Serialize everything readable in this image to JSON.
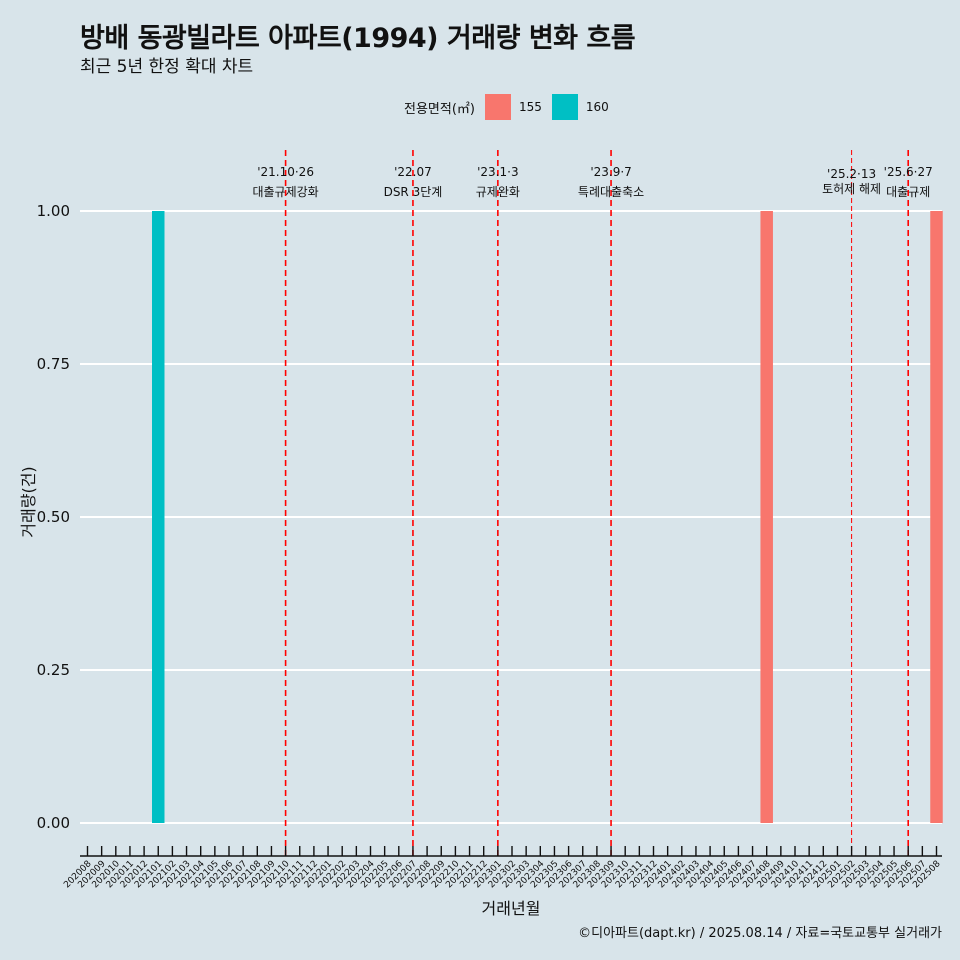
{
  "title": "방배 동광빌라트 아파트(1994) 거래량 변화 흐름",
  "subtitle": "최근 5년 한정 확대 차트",
  "caption": "©디아파트(dapt.kr) / 2025.08.14 / 자료=국토교통부 실거래가",
  "colors": {
    "background": "#d8e4ea",
    "s155": "#f8766d",
    "s160": "#00bfc4",
    "event_line": "#ff0000"
  },
  "chart_data": {
    "type": "bar",
    "title": "방배 동광빌라트 아파트(1994) 거래량 변화 흐름",
    "subtitle": "최근 5년 한정 확대 차트",
    "xlabel": "거래년월",
    "ylabel": "거래량(건)",
    "ylim": [
      0,
      1
    ],
    "yticks": [
      "0.00",
      "0.25",
      "0.50",
      "0.75",
      "1.00"
    ],
    "legend_title": "전용면적(㎡)",
    "legend_position": "top",
    "grid": true,
    "categories": [
      "202008",
      "202009",
      "202010",
      "202011",
      "202012",
      "202101",
      "202102",
      "202103",
      "202104",
      "202105",
      "202106",
      "202107",
      "202108",
      "202109",
      "202110",
      "202111",
      "202112",
      "202201",
      "202202",
      "202203",
      "202204",
      "202205",
      "202206",
      "202207",
      "202208",
      "202209",
      "202210",
      "202211",
      "202212",
      "202301",
      "202302",
      "202303",
      "202304",
      "202305",
      "202306",
      "202307",
      "202308",
      "202309",
      "202310",
      "202311",
      "202312",
      "202401",
      "202402",
      "202403",
      "202404",
      "202405",
      "202406",
      "202407",
      "202408",
      "202409",
      "202410",
      "202411",
      "202412",
      "202501",
      "202502",
      "202503",
      "202504",
      "202505",
      "202506",
      "202507",
      "202508"
    ],
    "series": [
      {
        "name": "155",
        "color": "#f8766d",
        "points": [
          {
            "x": "202408",
            "y": 1
          },
          {
            "x": "202508",
            "y": 1
          }
        ]
      },
      {
        "name": "160",
        "color": "#00bfc4",
        "points": [
          {
            "x": "202101",
            "y": 1
          }
        ]
      }
    ],
    "events": [
      {
        "x": "202110",
        "date": "'21.10·26",
        "label": "대출규제강화",
        "style": "major"
      },
      {
        "x": "202207",
        "date": "'22.07",
        "label": "DSR 3단계",
        "style": "major"
      },
      {
        "x": "202301",
        "date": "'23.1·3",
        "label": "규제완화",
        "style": "major"
      },
      {
        "x": "202309",
        "date": "'23.9·7",
        "label": "특례대출축소",
        "style": "major"
      },
      {
        "x": "202502",
        "date": "'25.2·13",
        "label": "토허제 해제",
        "style": "minor"
      },
      {
        "x": "202506",
        "date": "'25.6·27",
        "label": "대출규제",
        "style": "major"
      }
    ]
  }
}
